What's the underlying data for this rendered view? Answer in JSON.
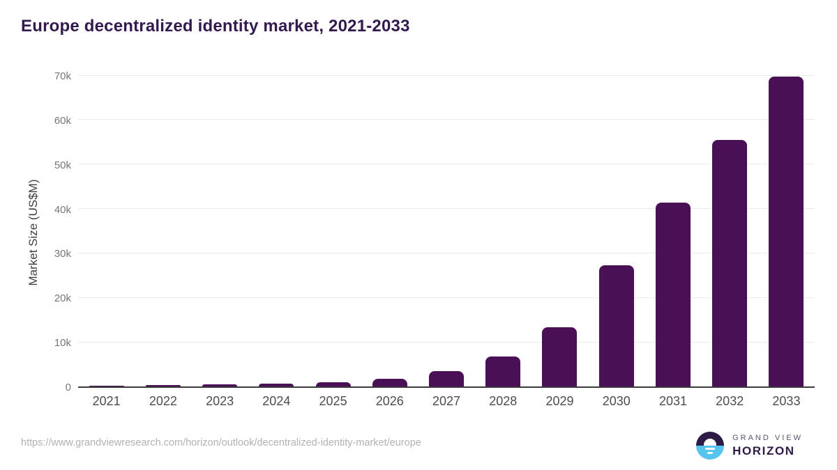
{
  "page": {
    "title": "Europe decentralized identity market, 2021-2033"
  },
  "chart_data": {
    "type": "bar",
    "title": "Europe decentralized identity market, 2021-2033",
    "categories": [
      "2021",
      "2022",
      "2023",
      "2024",
      "2025",
      "2026",
      "2027",
      "2028",
      "2029",
      "2030",
      "2031",
      "2032",
      "2033"
    ],
    "values": [
      200,
      300,
      450,
      620,
      900,
      1800,
      3500,
      6700,
      13300,
      27200,
      41300,
      55500,
      69700
    ],
    "units": "US$M",
    "xlabel": "",
    "ylabel": "Market Size (US$M)",
    "ylim": [
      0,
      70000
    ],
    "yticks": [
      0,
      10000,
      20000,
      30000,
      40000,
      50000,
      60000,
      70000
    ],
    "ytick_labels": [
      "0",
      "10k",
      "20k",
      "30k",
      "40k",
      "50k",
      "60k",
      "70k"
    ],
    "grid": "horizontal",
    "legend": "none"
  },
  "footer": {
    "source_url": "https://www.grandviewresearch.com/horizon/outlook/decentralized-identity-market/europe",
    "brand": {
      "top": "GRAND VIEW",
      "bottom": "HORIZON"
    }
  },
  "colors": {
    "title": "#321a4e",
    "bar": "#4a1056",
    "gridline": "#eaeaea",
    "axis_line": "#3b3b3b",
    "x_tick": "#4d4d4d",
    "y_tick": "#767676",
    "source_url": "#b2b2b2",
    "logo_dark": "#2d1b45",
    "logo_blue": "#57c4f0"
  }
}
